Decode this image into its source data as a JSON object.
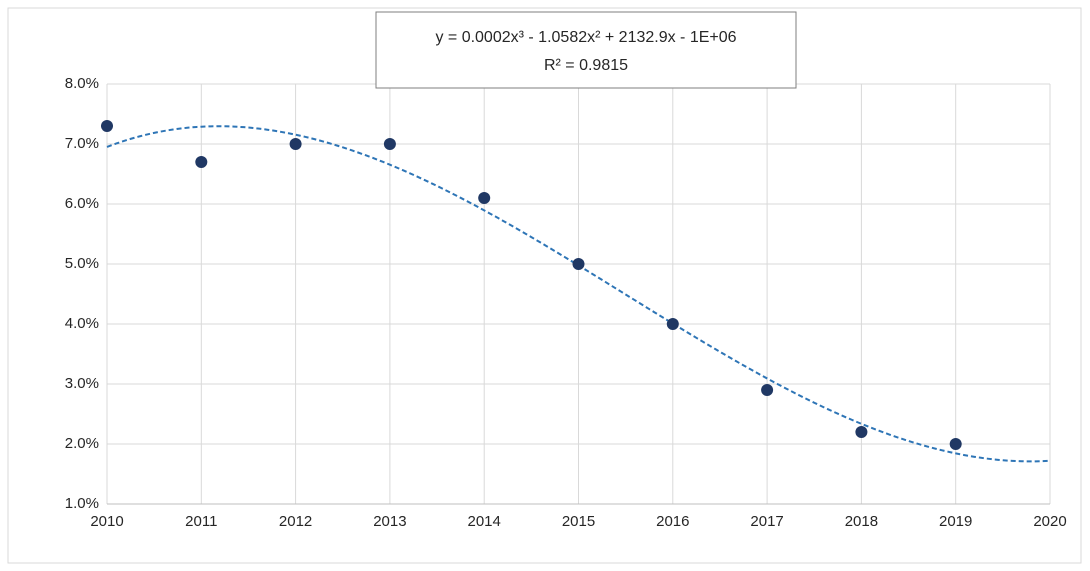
{
  "chart_data": {
    "type": "scatter",
    "annotation": "y = 0.0002x³ - 1.0582x² + 2132.9x - 1E+06",
    "r_squared_label": "R² = 0.9815",
    "x": [
      2010,
      2011,
      2012,
      2013,
      2014,
      2015,
      2016,
      2017,
      2018,
      2019
    ],
    "series": [
      {
        "color": "#203864",
        "values": [
          7.3,
          6.7,
          7.0,
          7.0,
          6.1,
          5.0,
          4.0,
          2.9,
          2.2,
          2.0
        ]
      }
    ],
    "trendline": {
      "type": "polynomial",
      "order": 3,
      "color": "#2e75b6"
    },
    "xlim": [
      2010,
      2020
    ],
    "xticks": [
      2010,
      2011,
      2012,
      2013,
      2014,
      2015,
      2016,
      2017,
      2018,
      2019,
      2020
    ],
    "ylim": [
      1,
      8
    ],
    "yticks": [
      {
        "value": 1,
        "label": "1.0%"
      },
      {
        "value": 2,
        "label": "2.0%"
      },
      {
        "value": 3,
        "label": "3.0%"
      },
      {
        "value": 4,
        "label": "4.0%"
      },
      {
        "value": 5,
        "label": "5.0%"
      },
      {
        "value": 6,
        "label": "6.0%"
      },
      {
        "value": 7,
        "label": "7.0%"
      },
      {
        "value": 8,
        "label": "8.0%"
      }
    ],
    "grid": true
  }
}
